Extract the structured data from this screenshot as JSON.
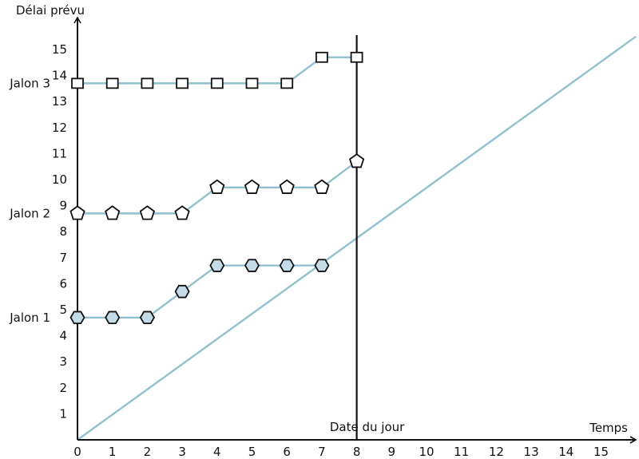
{
  "chart_data": {
    "type": "line",
    "xlabel": "Temps",
    "ylabel": "Délai prévu",
    "xlim": [
      0,
      15
    ],
    "ylim": [
      0,
      15
    ],
    "x_ticks": [
      0,
      1,
      2,
      3,
      4,
      5,
      6,
      7,
      8,
      9,
      10,
      11,
      12,
      13,
      14,
      15
    ],
    "y_ticks": [
      1,
      2,
      3,
      4,
      5,
      6,
      7,
      8,
      9,
      10,
      11,
      12,
      13,
      14,
      15
    ],
    "grid": false,
    "line_color": "#8fc1d1",
    "today_label": "Date du jour",
    "today_x": 8,
    "reference_line": {
      "x": [
        0,
        16
      ],
      "y": [
        0,
        15.5
      ]
    },
    "series": [
      {
        "name": "Jalon 1",
        "marker": "hexagon",
        "marker_fill": "#c4dbe8",
        "x": [
          0,
          1,
          2,
          3,
          4,
          5,
          6,
          7
        ],
        "y": [
          4.7,
          4.7,
          4.7,
          5.7,
          6.7,
          6.7,
          6.7,
          6.7
        ]
      },
      {
        "name": "Jalon 2",
        "marker": "pentagon",
        "marker_fill": "#ffffff",
        "x": [
          0,
          1,
          2,
          3,
          4,
          5,
          6,
          7,
          8
        ],
        "y": [
          8.7,
          8.7,
          8.7,
          8.7,
          9.7,
          9.7,
          9.7,
          9.7,
          10.7
        ]
      },
      {
        "name": "Jalon 3",
        "marker": "square",
        "marker_fill": "#ffffff",
        "x": [
          0,
          1,
          2,
          3,
          4,
          5,
          6,
          7,
          8
        ],
        "y": [
          13.7,
          13.7,
          13.7,
          13.7,
          13.7,
          13.7,
          13.7,
          14.7,
          14.7
        ]
      }
    ]
  }
}
